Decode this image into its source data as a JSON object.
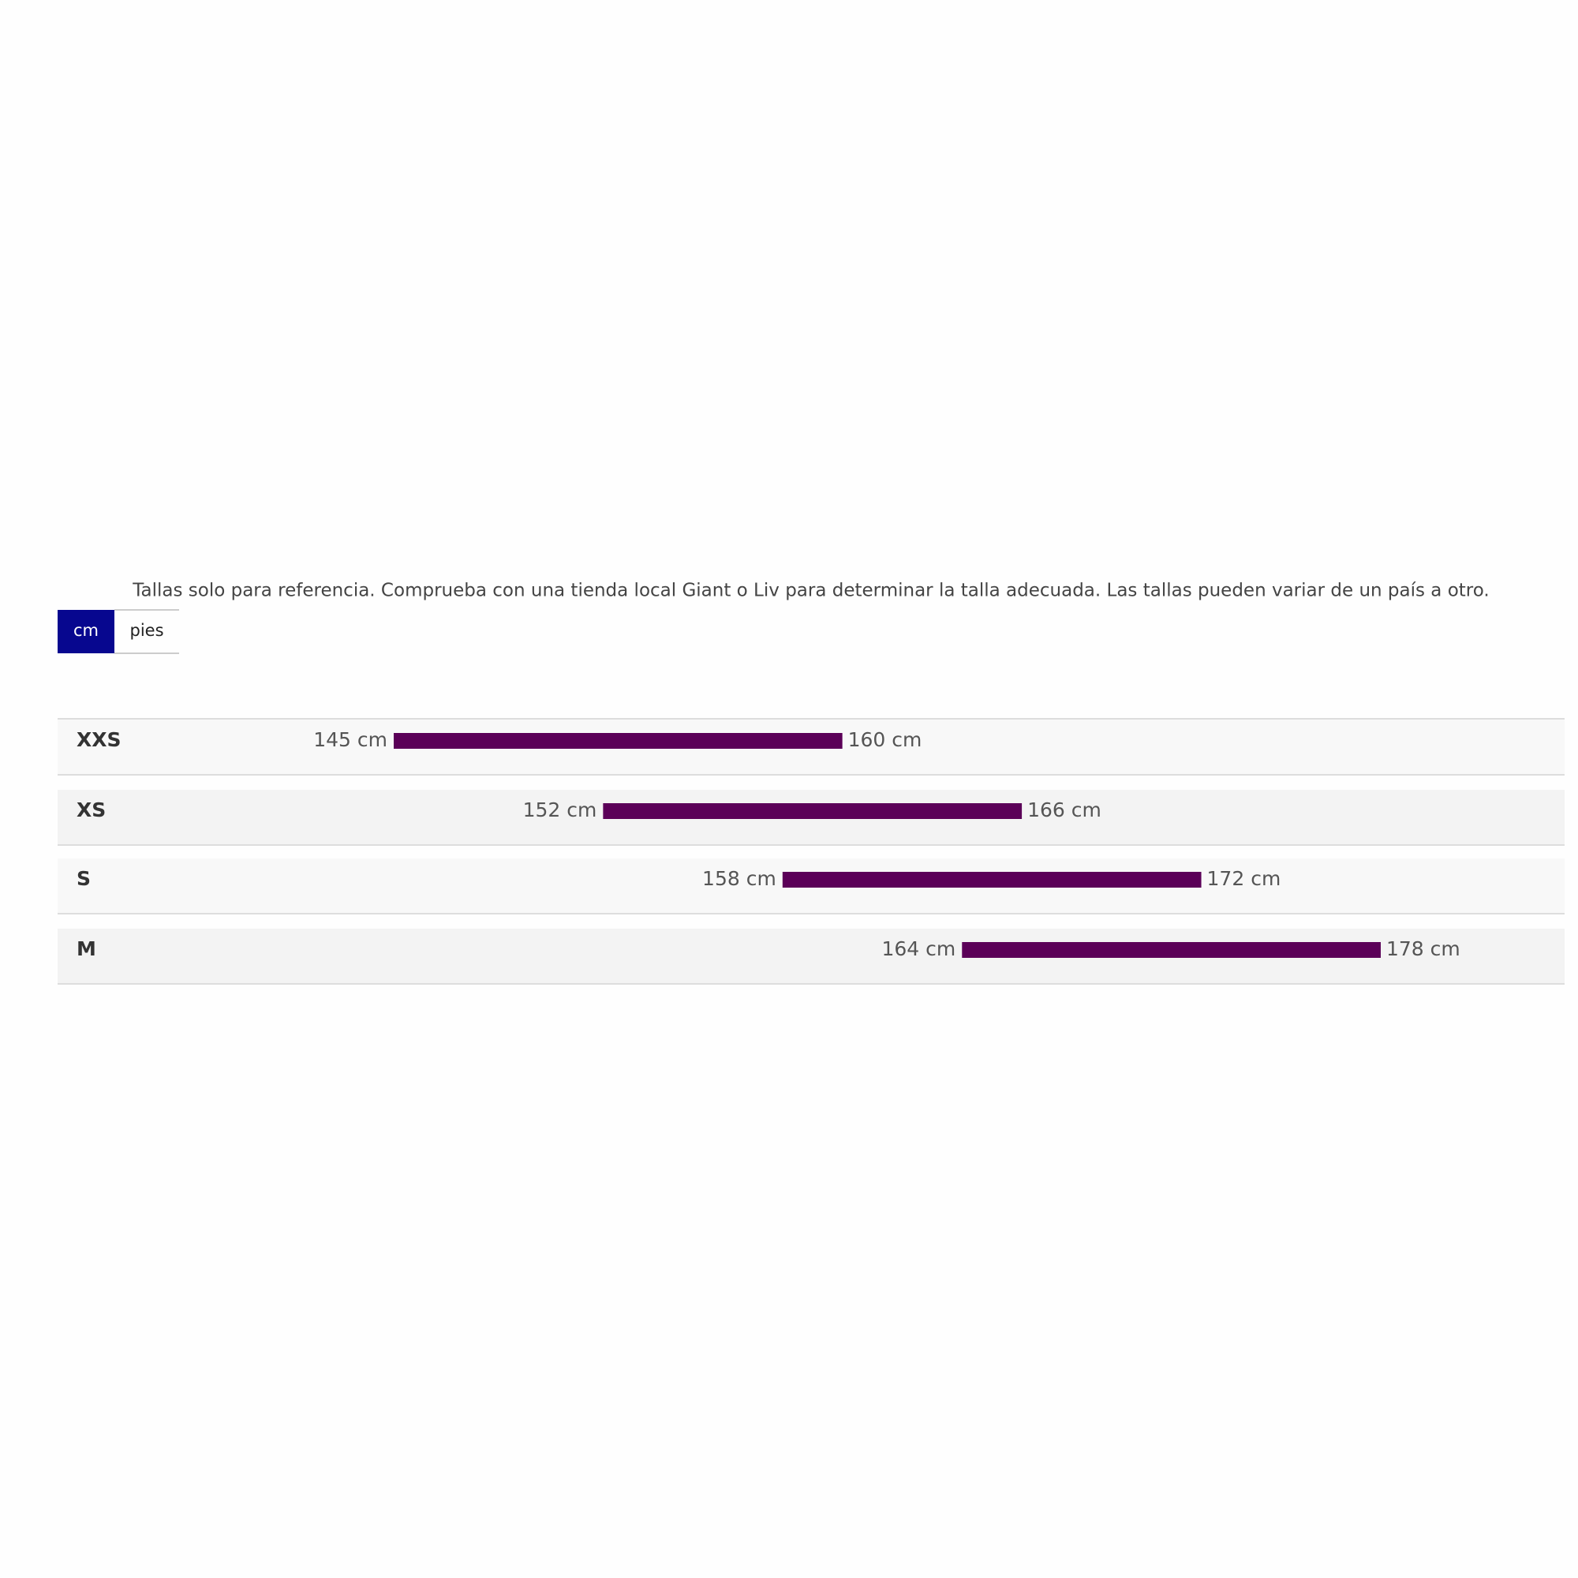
{
  "note": "Tallas solo para referencia. Comprueba con una tienda local Giant o Liv para determinar la talla adecuada. Las tallas pueden variar de un país a otro.",
  "units": [
    "cm",
    "pies"
  ],
  "sizes": [
    {
      "name": "XXS",
      "min": 145,
      "max": 160,
      "min_label": "145 cm",
      "max_label": "160 cm"
    },
    {
      "name": "XS",
      "min": 152,
      "max": 166,
      "min_label": "152 cm",
      "max_label": "166 cm"
    },
    {
      "name": "S",
      "min": 158,
      "max": 172,
      "min_label": "158 cm",
      "max_label": "172 cm"
    },
    {
      "name": "M",
      "min": 164,
      "max": 178,
      "min_label": "164 cm",
      "max_label": "178 cm"
    }
  ]
}
